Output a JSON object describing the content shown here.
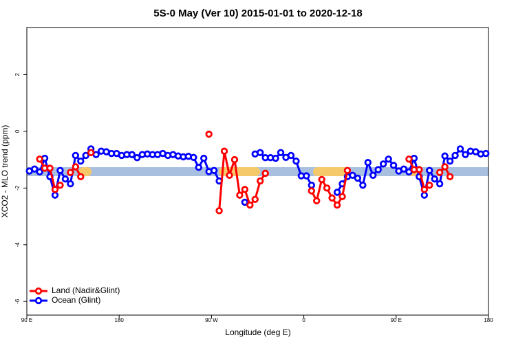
{
  "chart_data": {
    "type": "line",
    "title": "5S-0 May (Ver 10)   2015-01-01 to 2020-12-18",
    "x_label": "Longitude (deg E)",
    "y_label": "XCO2 - MLO trend (ppm)",
    "x": [
      92.5,
      97.5,
      102.5,
      107.5,
      112.5,
      117.5,
      122.5,
      127.5,
      132.5,
      137.5,
      142.5,
      147.5,
      152.5,
      157.5,
      162.5,
      167.5,
      172.5,
      177.5,
      182.5,
      187.5,
      192.5,
      197.5,
      202.5,
      207.5,
      212.5,
      217.5,
      222.5,
      227.5,
      232.5,
      237.5,
      242.5,
      247.5,
      252.5,
      257.5,
      262.5,
      267.5,
      272.5,
      277.5,
      282.5,
      287.5,
      292.5,
      297.5,
      302.5,
      307.5,
      312.5,
      317.5,
      322.5,
      327.5,
      332.5,
      337.5,
      342.5,
      347.5,
      352.5,
      357.5,
      362.5,
      367.5,
      372.5,
      377.5,
      382.5,
      387.5,
      392.5,
      397.5,
      402.5,
      407.5,
      412.5,
      417.5,
      422.5,
      427.5,
      432.5,
      437.5,
      442.5,
      447.5,
      452.5,
      457.5,
      462.5,
      467.5,
      472.5,
      477.5,
      482.5,
      487.5,
      492.5,
      497.5,
      502.5,
      507.5,
      512.5,
      517.5,
      522.5,
      527.5,
      532.5,
      537.5
    ],
    "series": [
      {
        "name": "Land (Nadir&Glint)",
        "color": "#ff0000",
        "values": [
          null,
          null,
          -0.98,
          -1.3,
          -1.3,
          -2.05,
          -1.9,
          null,
          -1.45,
          -1.25,
          -1.6,
          null,
          -0.75,
          null,
          null,
          null,
          null,
          null,
          null,
          null,
          null,
          null,
          null,
          null,
          null,
          null,
          null,
          null,
          null,
          null,
          null,
          null,
          null,
          null,
          null,
          -0.1,
          null,
          -2.8,
          -0.7,
          -1.55,
          -1.0,
          -2.25,
          -2.05,
          -2.6,
          -2.4,
          -1.75,
          -1.48,
          null,
          null,
          null,
          null,
          null,
          null,
          null,
          null,
          -2.1,
          -2.45,
          -1.7,
          -2.0,
          -2.35,
          -2.6,
          -2.3,
          -1.38,
          null,
          null,
          null,
          null,
          null,
          null,
          null,
          null,
          null,
          null,
          null,
          -0.98,
          -1.35,
          -1.35,
          -2.05,
          -1.9,
          null,
          -1.45,
          -1.25,
          -1.6,
          null,
          null,
          null,
          null,
          null,
          null,
          null
        ]
      },
      {
        "name": "Ocean (Glint)",
        "color": "#0000ff",
        "values": [
          -1.4,
          -1.33,
          -1.43,
          -0.95,
          -1.6,
          -2.25,
          -1.38,
          -1.68,
          -1.85,
          -0.85,
          -1.05,
          -0.85,
          -0.62,
          -0.82,
          -0.7,
          -0.72,
          -0.78,
          -0.78,
          -0.85,
          -0.82,
          -0.82,
          -0.93,
          -0.82,
          -0.8,
          -0.82,
          -0.82,
          -0.78,
          -0.85,
          -0.82,
          -0.87,
          -0.9,
          -0.88,
          -0.92,
          -1.27,
          -0.95,
          -1.42,
          -1.38,
          -1.75,
          null,
          null,
          null,
          null,
          -2.5,
          null,
          -0.8,
          -0.75,
          -0.93,
          -0.93,
          -0.95,
          -0.75,
          -0.92,
          -0.85,
          -1.05,
          -1.57,
          -1.57,
          -1.9,
          null,
          null,
          null,
          null,
          -2.15,
          -1.85,
          -1.6,
          -1.55,
          -1.65,
          -1.9,
          -1.1,
          -1.55,
          -1.35,
          -1.15,
          -0.98,
          -1.2,
          -1.4,
          -1.33,
          -1.43,
          -0.95,
          -1.6,
          -2.25,
          -1.38,
          -1.68,
          -1.85,
          -0.87,
          -1.05,
          -0.85,
          -0.62,
          -0.82,
          -0.7,
          -0.72,
          -0.8,
          -0.78
        ]
      }
    ],
    "xlim": [
      90,
      540
    ],
    "xticks": [
      {
        "value": 90,
        "label": "90 E"
      },
      180,
      {
        "value": 270,
        "label": "90 W"
      },
      {
        "value": 360,
        "label": "0"
      },
      {
        "value": 450,
        "label": "90 E"
      },
      {
        "value": 540,
        "label": "180"
      }
    ],
    "ylim": [
      -6.48,
      3.66
    ],
    "yticks": [
      -6,
      -4,
      -2,
      0,
      2
    ],
    "legend": "bottom-left"
  }
}
